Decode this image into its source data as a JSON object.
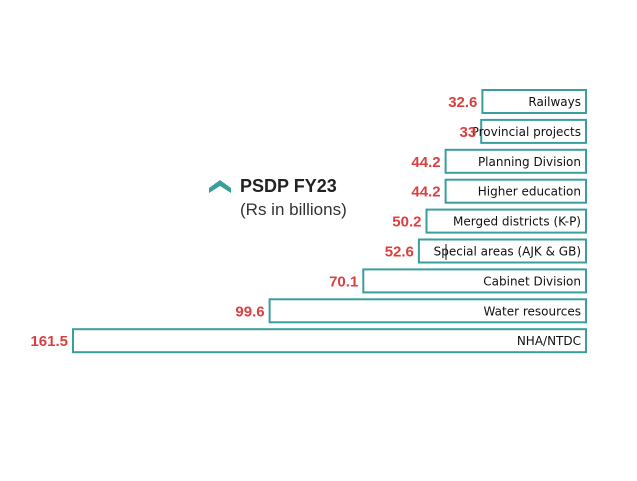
{
  "chart_data": {
    "type": "bar",
    "orientation": "horizontal",
    "title": "PSDP FY23",
    "subtitle": "(Rs in billions)",
    "categories": [
      "Railways",
      "Provincial projects",
      "Planning Division",
      "Higher education",
      "Merged districts (K-P)",
      "Special areas (AJK & GB)",
      "Cabinet Division",
      "Water resources",
      "NHA/NTDC"
    ],
    "values": [
      32.6,
      33,
      44.2,
      44.2,
      50.2,
      52.6,
      70.1,
      99.6,
      161.5
    ],
    "value_labels": [
      "32.6",
      "33",
      "44.2",
      "44.2",
      "50.2",
      "52.6",
      "70.1",
      "99.6",
      "161.5"
    ],
    "xlabel": "",
    "ylabel": "",
    "xlim": [
      0,
      161.5
    ]
  },
  "colors": {
    "bar_outline": "#3a9e9b",
    "value_text": "#d9403f",
    "title_icon": "#3a9e9b"
  },
  "icons": {
    "title_icon": "chevron-up-icon"
  }
}
